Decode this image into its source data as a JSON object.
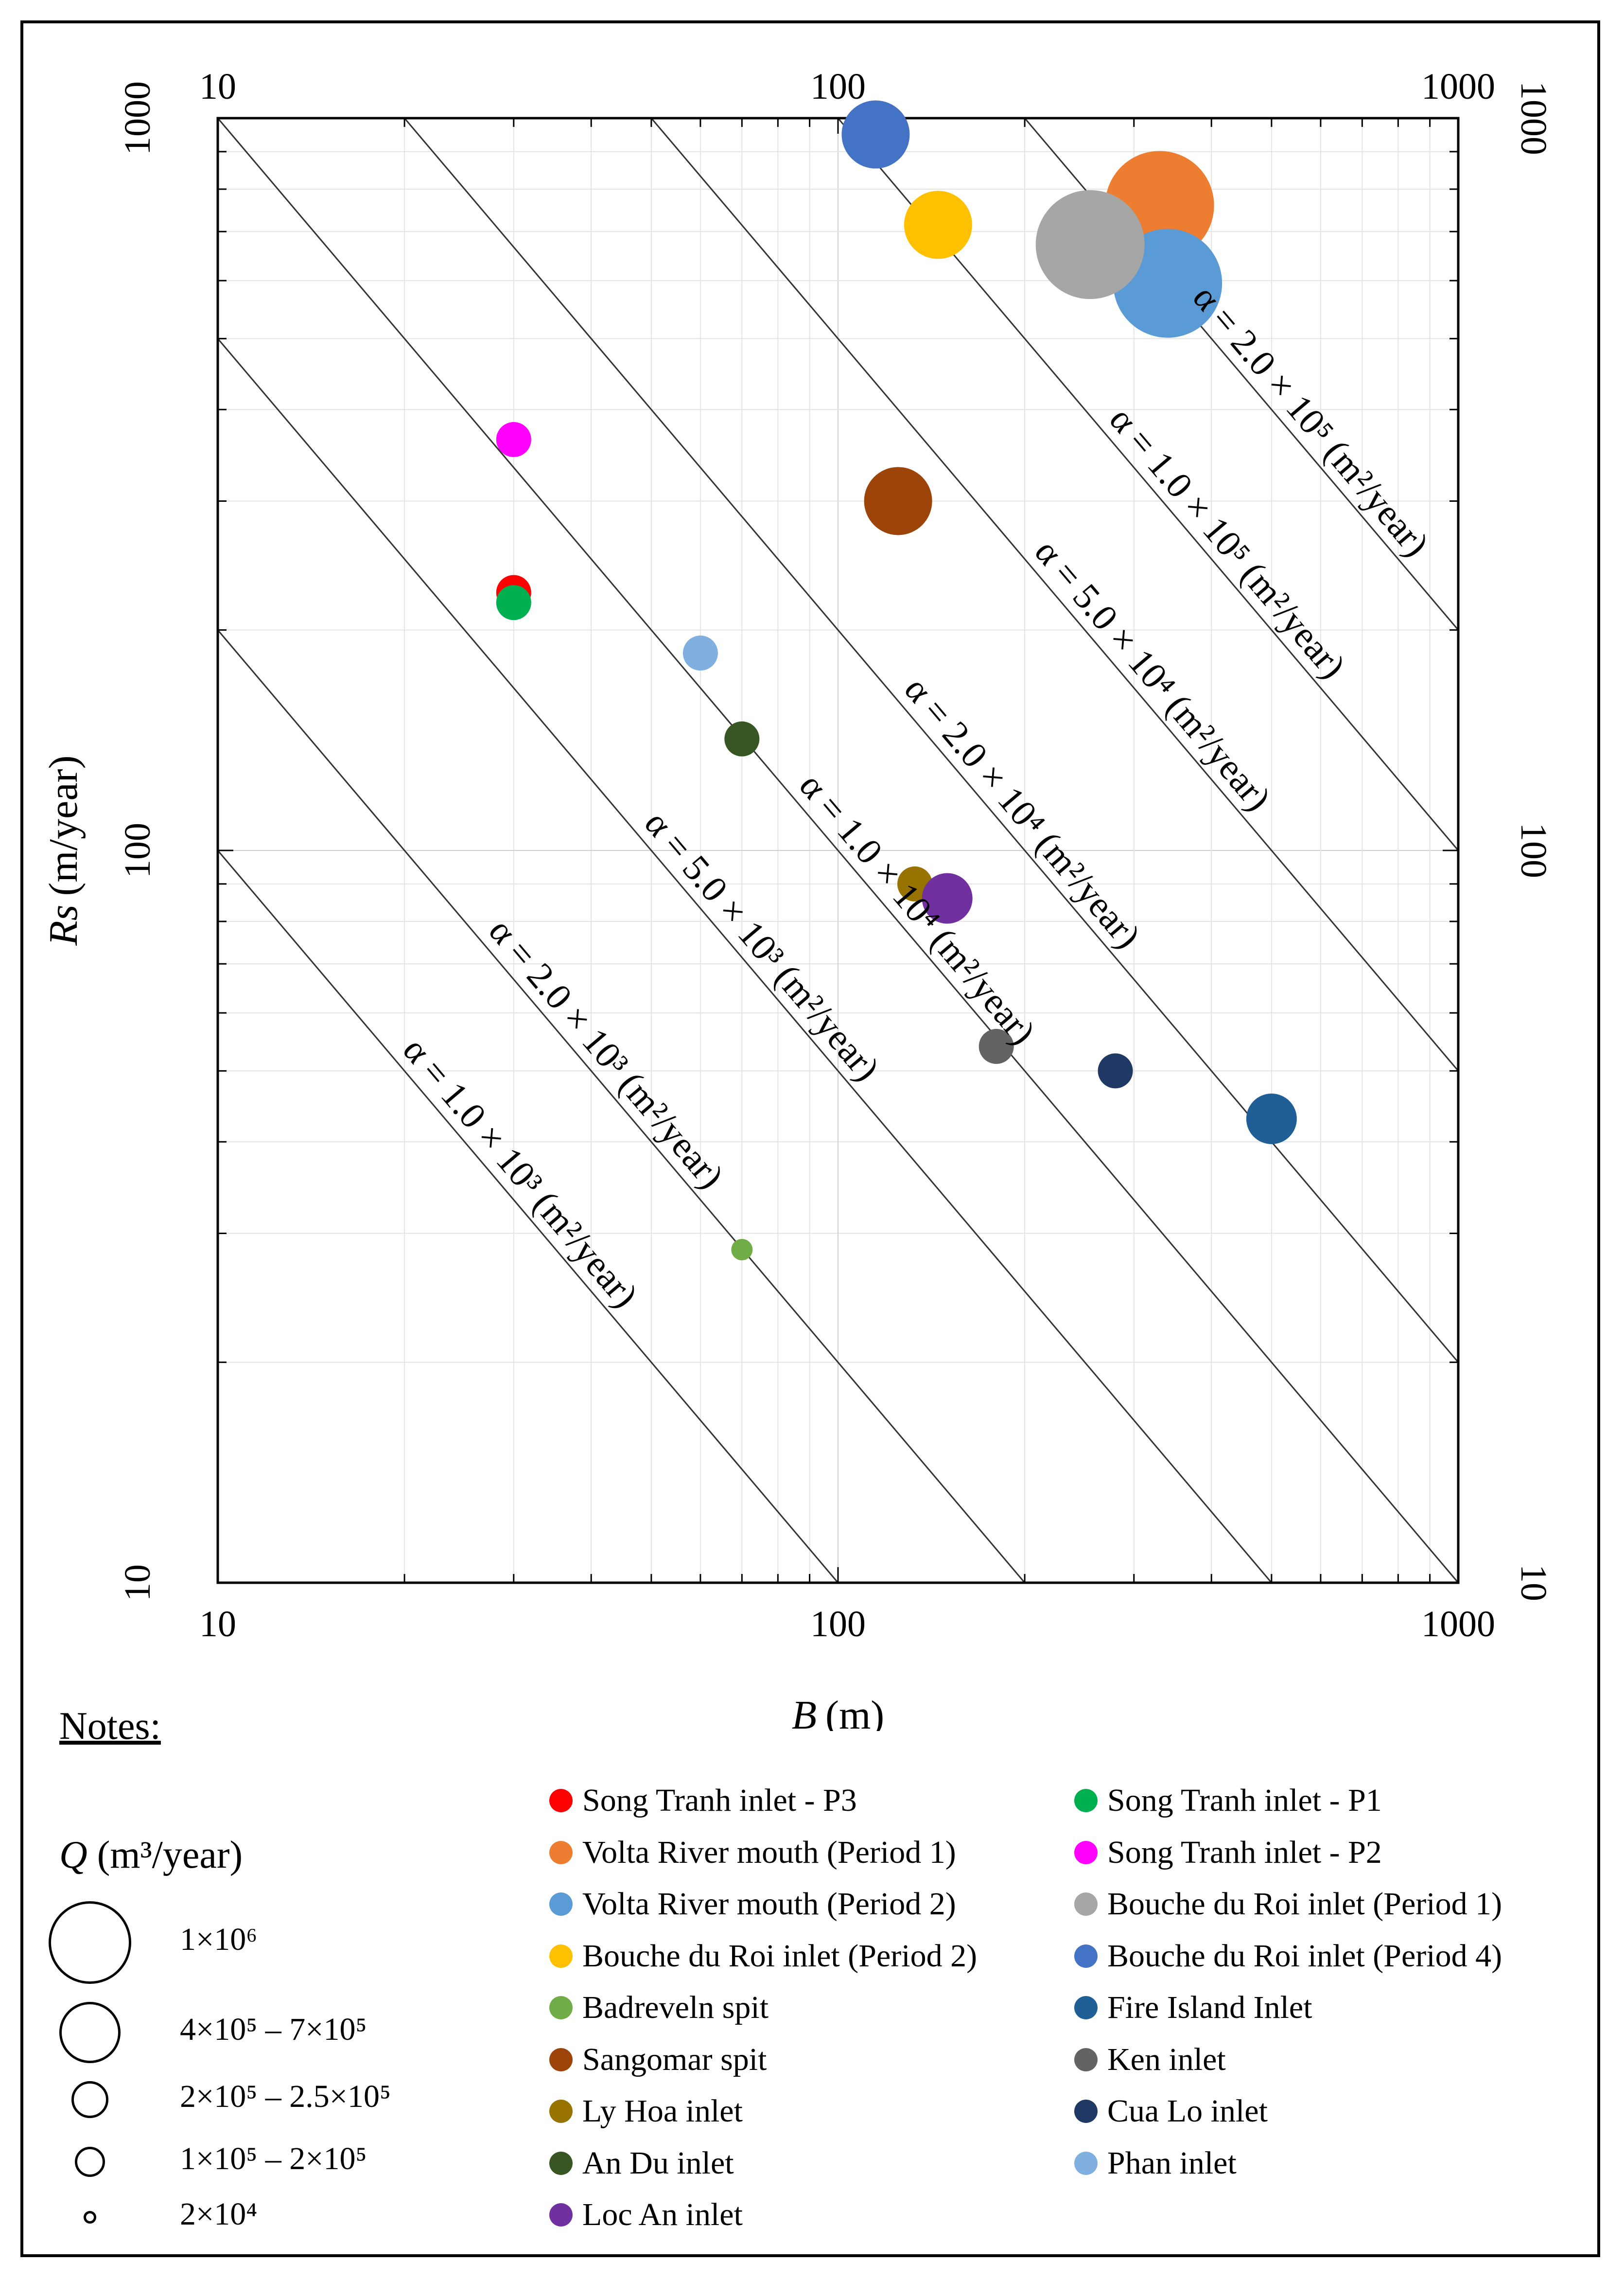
{
  "chart_data": {
    "type": "scatter",
    "xscale": "log",
    "yscale": "log",
    "xlim": [
      10,
      1000
    ],
    "ylim": [
      10,
      1000
    ],
    "xlabel_symbol": "B",
    "xlabel_unit": "(m)",
    "ylabel_symbol": "Rs",
    "ylabel_unit": "(m/year)",
    "x_ticks": [
      "10",
      "100",
      "1000"
    ],
    "y_ticks": [
      "10",
      "100",
      "1000"
    ],
    "grid": true,
    "reference_lines": [
      {
        "alpha": 1000,
        "label": "α = 1.0 × 10³ (m²/year)"
      },
      {
        "alpha": 2000,
        "label": "α = 2.0 × 10³ (m²/year)"
      },
      {
        "alpha": 5000,
        "label": "α = 5.0 × 10³ (m²/year)"
      },
      {
        "alpha": 10000,
        "label": "α = 1.0 × 10⁴ (m²/year)"
      },
      {
        "alpha": 20000,
        "label": "α = 2.0 × 10⁴ (m²/year)"
      },
      {
        "alpha": 50000,
        "label": "α = 5.0 × 10⁴ (m²/year)"
      },
      {
        "alpha": 100000,
        "label": "α = 1.0 × 10⁵ (m²/year)"
      },
      {
        "alpha": 200000,
        "label": "α = 2.0 × 10⁵ (m²/year)"
      }
    ],
    "series": [
      {
        "name": "Song Tranh inlet - P3",
        "x": 30,
        "y": 225,
        "color": "#ff0000",
        "size": "1×10^5 – 2×10^5"
      },
      {
        "name": "Song Tranh inlet - P1",
        "x": 30,
        "y": 218,
        "color": "#00b050",
        "size": "1×10^5 – 2×10^5"
      },
      {
        "name": "Volta River mouth (Period 1)",
        "x": 330,
        "y": 760,
        "color": "#ed7d31",
        "size": "1×10^6"
      },
      {
        "name": "Song Tranh inlet - P2",
        "x": 30,
        "y": 364,
        "color": "#ff00ff",
        "size": "1×10^5 – 2×10^5"
      },
      {
        "name": "Volta River mouth (Period 2)",
        "x": 340,
        "y": 595,
        "color": "#5b9bd5",
        "size": "1×10^6"
      },
      {
        "name": "Bouche du Roi inlet (Period 1)",
        "x": 255,
        "y": 672,
        "color": "#a6a6a6",
        "size": "1×10^6"
      },
      {
        "name": "Bouche du Roi inlet (Period 2)",
        "x": 145,
        "y": 715,
        "color": "#ffc000",
        "size": "4×10^5 – 7×10^5"
      },
      {
        "name": "Bouche du Roi inlet (Period 4)",
        "x": 115,
        "y": 950,
        "color": "#4472c4",
        "size": "4×10^5 – 7×10^5"
      },
      {
        "name": "Badreveln spit",
        "x": 70,
        "y": 28.5,
        "color": "#70ad47",
        "size": "2×10^4"
      },
      {
        "name": "Fire Island Inlet",
        "x": 500,
        "y": 43,
        "color": "#1f5f96",
        "size": "2×10^5 – 2.5×10^5"
      },
      {
        "name": "Sangomar spit",
        "x": 125,
        "y": 300,
        "color": "#9c4409",
        "size": "4×10^5 – 7×10^5"
      },
      {
        "name": "Ken inlet",
        "x": 180,
        "y": 54,
        "color": "#636363",
        "size": "1×10^5 – 2×10^5"
      },
      {
        "name": "Ly Hoa inlet",
        "x": 133,
        "y": 90,
        "color": "#997300",
        "size": "1×10^5 – 2×10^5"
      },
      {
        "name": "Cua Lo inlet",
        "x": 280,
        "y": 50,
        "color": "#203864",
        "size": "1×10^5 – 2×10^5"
      },
      {
        "name": "An Du inlet",
        "x": 70,
        "y": 142,
        "color": "#375623",
        "size": "1×10^5 – 2×10^5"
      },
      {
        "name": "Phan inlet",
        "x": 60,
        "y": 186,
        "color": "#7fb0e0",
        "size": "1×10^5 – 2×10^5"
      },
      {
        "name": "Loc An inlet",
        "x": 150,
        "y": 86,
        "color": "#7030a0",
        "size": "2×10^5 – 2.5×10^5"
      }
    ]
  },
  "notes": {
    "title": "Notes:",
    "q_symbol": "Q",
    "q_unit": "(m³/year)",
    "sizes": [
      {
        "label": "1×10⁶"
      },
      {
        "label": "4×10⁵ – 7×10⁵"
      },
      {
        "label": "2×10⁵ – 2.5×10⁵"
      },
      {
        "label": "1×10⁵ – 2×10⁵"
      },
      {
        "label": "2×10⁴"
      }
    ]
  }
}
